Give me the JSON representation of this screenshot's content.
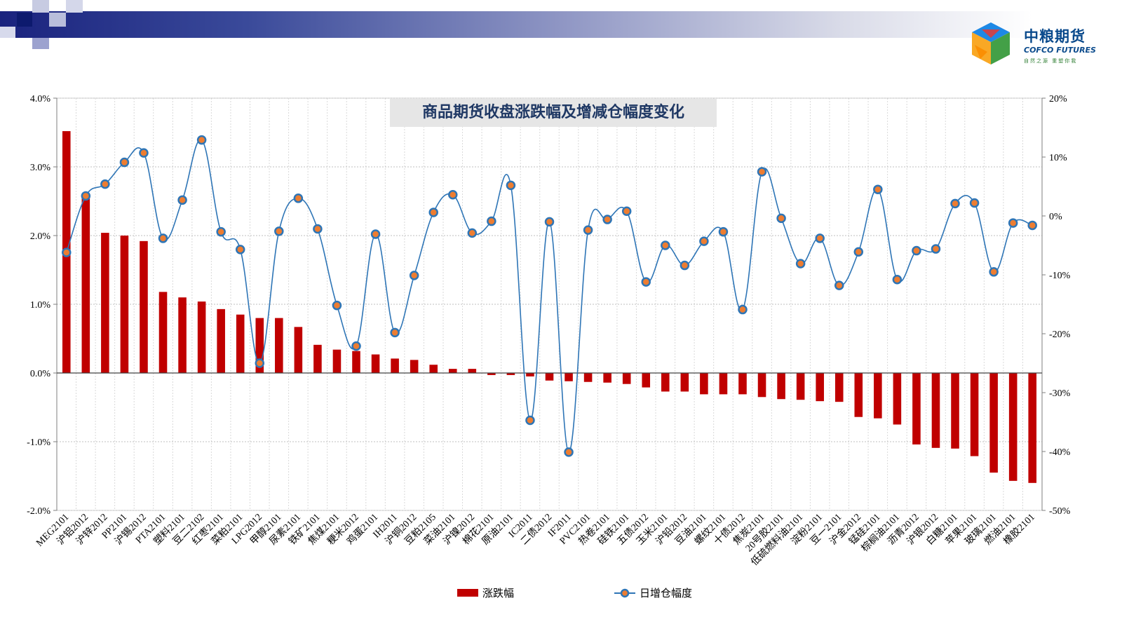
{
  "brand": {
    "name": "中粮期货",
    "name_en": "COFCO FUTURES",
    "slogan": "自然之源 重塑你我"
  },
  "colors": {
    "bar": "#c00000",
    "line": "#2e75b6",
    "marker_fill": "#ed7d31",
    "marker_stroke": "#2e75b6",
    "title_bg": "#e6e6e6",
    "title_text": "#1f3864"
  },
  "chart_data": {
    "type": "bar",
    "title": "商品期货收盘涨跌幅及增减仓幅度变化",
    "xlabel": "",
    "ylabel": "",
    "categories": [
      "MEG2101",
      "沪铝2012",
      "沪锌2012",
      "PP2101",
      "沪锡2012",
      "PTA2101",
      "塑料2101",
      "豆二2102",
      "红枣2101",
      "菜粕2101",
      "LPG2012",
      "甲醇2101",
      "尿素2101",
      "铁矿2101",
      "焦煤2101",
      "粳米2012",
      "鸡蛋2101",
      "IH2011",
      "沪铜2012",
      "豆粕2105",
      "菜油2101",
      "沪镍2012",
      "棉花2101",
      "原油2101",
      "IC2011",
      "二债2012",
      "IF2011",
      "PVC2101",
      "热卷2101",
      "硅铁2101",
      "五债2012",
      "玉米2101",
      "沪铅2012",
      "豆油2101",
      "螺纹2101",
      "十债2012",
      "焦炭2101",
      "20号胶2101",
      "低硫燃料油2101",
      "淀粉2101",
      "豆一2101",
      "沪金2012",
      "锰硅2101",
      "棕榈油2101",
      "沥青2012",
      "沪银2012",
      "白糖2101",
      "苹果2101",
      "玻璃2101",
      "燃油2101",
      "橡胶2101"
    ],
    "series": [
      {
        "name": "涨跌幅",
        "type": "bar",
        "axis": "left",
        "values": [
          3.52,
          2.55,
          2.04,
          2.0,
          1.92,
          1.18,
          1.1,
          1.04,
          0.93,
          0.85,
          0.8,
          0.8,
          0.67,
          0.41,
          0.34,
          0.32,
          0.27,
          0.21,
          0.19,
          0.12,
          0.06,
          0.06,
          -0.03,
          -0.03,
          -0.05,
          -0.11,
          -0.12,
          -0.13,
          -0.14,
          -0.16,
          -0.21,
          -0.27,
          -0.27,
          -0.31,
          -0.31,
          -0.31,
          -0.35,
          -0.38,
          -0.39,
          -0.41,
          -0.42,
          -0.64,
          -0.66,
          -0.75,
          -1.04,
          -1.09,
          -1.1,
          -1.21,
          -1.45,
          -1.57,
          -1.6
        ]
      },
      {
        "name": "日增仓幅度",
        "type": "line",
        "axis": "right",
        "values": [
          -6.2,
          3.4,
          5.4,
          9.1,
          10.7,
          -3.8,
          2.7,
          12.9,
          -2.7,
          -5.7,
          -25.0,
          -2.6,
          3.0,
          -2.2,
          -15.2,
          -22.1,
          -3.1,
          -19.8,
          -10.1,
          0.6,
          3.6,
          -2.9,
          -0.9,
          5.2,
          -34.7,
          -1.0,
          -40.1,
          -2.4,
          -0.6,
          0.8,
          -11.2,
          -5.0,
          -8.4,
          -4.3,
          -2.7,
          -15.9,
          7.5,
          -0.4,
          -8.1,
          -3.8,
          -11.8,
          -6.1,
          4.5,
          -10.8,
          -5.9,
          -5.6,
          2.1,
          2.2,
          -9.5,
          -1.2,
          -1.6
        ]
      }
    ],
    "y_left": {
      "range": [
        -2.0,
        4.0
      ],
      "ticks": [
        "4.0%",
        "3.0%",
        "2.0%",
        "1.0%",
        "0.0%",
        "-1.0%",
        "-2.0%"
      ]
    },
    "y_right": {
      "range": [
        -50,
        20
      ],
      "ticks": [
        "20%",
        "10%",
        "0%",
        "-10%",
        "-20%",
        "-30%",
        "-40%",
        "-50%"
      ]
    },
    "grid": true,
    "legend_position": "bottom"
  }
}
